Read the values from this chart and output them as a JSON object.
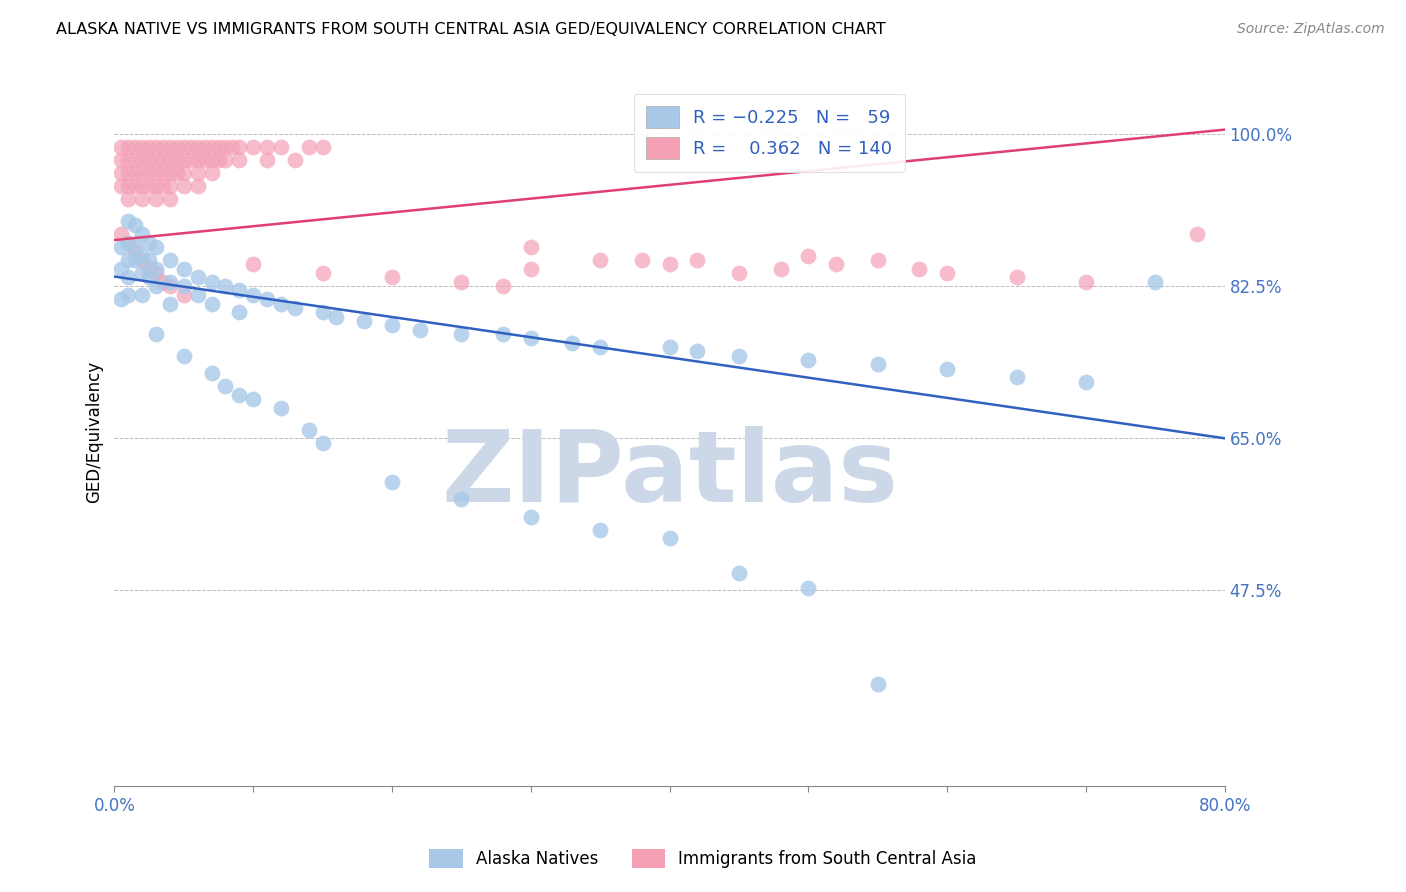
{
  "title": "ALASKA NATIVE VS IMMIGRANTS FROM SOUTH CENTRAL ASIA GED/EQUIVALENCY CORRELATION CHART",
  "source": "Source: ZipAtlas.com",
  "ylabel": "GED/Equivalency",
  "xlim": [
    0.0,
    0.8
  ],
  "ylim": [
    0.25,
    1.065
  ],
  "yticks": [
    0.475,
    0.65,
    0.825,
    1.0
  ],
  "ytick_labels": [
    "47.5%",
    "65.0%",
    "82.5%",
    "100.0%"
  ],
  "xticks": [
    0.0,
    0.1,
    0.2,
    0.3,
    0.4,
    0.5,
    0.6,
    0.7,
    0.8
  ],
  "xtick_labels": [
    "0.0%",
    "",
    "",
    "",
    "",
    "",
    "",
    "",
    "80.0%"
  ],
  "blue_color": "#a8c8e8",
  "pink_color": "#f4a0b5",
  "blue_line_color": "#3060c0",
  "pink_line_color": "#e04070",
  "blue_trend_x": [
    0.0,
    0.8
  ],
  "blue_trend_y": [
    0.836,
    0.65
  ],
  "pink_trend_x": [
    0.0,
    0.8
  ],
  "pink_trend_y": [
    0.878,
    1.005
  ],
  "watermark_text": "ZIPatlas",
  "watermark_color": "#ccd8e8",
  "title_fontsize": 11.5,
  "tick_color": "#4472c4",
  "grid_color": "#bbbbbb",
  "blue_scatter": [
    [
      0.005,
      0.87
    ],
    [
      0.005,
      0.845
    ],
    [
      0.005,
      0.81
    ],
    [
      0.01,
      0.9
    ],
    [
      0.01,
      0.875
    ],
    [
      0.01,
      0.855
    ],
    [
      0.01,
      0.835
    ],
    [
      0.01,
      0.815
    ],
    [
      0.015,
      0.895
    ],
    [
      0.015,
      0.87
    ],
    [
      0.015,
      0.855
    ],
    [
      0.02,
      0.885
    ],
    [
      0.02,
      0.86
    ],
    [
      0.02,
      0.84
    ],
    [
      0.02,
      0.815
    ],
    [
      0.025,
      0.875
    ],
    [
      0.025,
      0.855
    ],
    [
      0.025,
      0.835
    ],
    [
      0.03,
      0.87
    ],
    [
      0.03,
      0.845
    ],
    [
      0.03,
      0.825
    ],
    [
      0.04,
      0.855
    ],
    [
      0.04,
      0.83
    ],
    [
      0.04,
      0.805
    ],
    [
      0.05,
      0.845
    ],
    [
      0.05,
      0.825
    ],
    [
      0.06,
      0.835
    ],
    [
      0.06,
      0.815
    ],
    [
      0.07,
      0.83
    ],
    [
      0.07,
      0.805
    ],
    [
      0.08,
      0.825
    ],
    [
      0.09,
      0.82
    ],
    [
      0.09,
      0.795
    ],
    [
      0.1,
      0.815
    ],
    [
      0.11,
      0.81
    ],
    [
      0.12,
      0.805
    ],
    [
      0.13,
      0.8
    ],
    [
      0.15,
      0.795
    ],
    [
      0.16,
      0.79
    ],
    [
      0.18,
      0.785
    ],
    [
      0.2,
      0.78
    ],
    [
      0.22,
      0.775
    ],
    [
      0.25,
      0.77
    ],
    [
      0.28,
      0.77
    ],
    [
      0.3,
      0.765
    ],
    [
      0.33,
      0.76
    ],
    [
      0.35,
      0.755
    ],
    [
      0.4,
      0.755
    ],
    [
      0.42,
      0.75
    ],
    [
      0.45,
      0.745
    ],
    [
      0.5,
      0.74
    ],
    [
      0.55,
      0.735
    ],
    [
      0.6,
      0.73
    ],
    [
      0.65,
      0.72
    ],
    [
      0.7,
      0.715
    ],
    [
      0.75,
      0.83
    ],
    [
      0.03,
      0.77
    ],
    [
      0.05,
      0.745
    ],
    [
      0.07,
      0.725
    ],
    [
      0.08,
      0.71
    ],
    [
      0.09,
      0.7
    ],
    [
      0.1,
      0.695
    ],
    [
      0.12,
      0.685
    ],
    [
      0.14,
      0.66
    ],
    [
      0.15,
      0.645
    ],
    [
      0.2,
      0.6
    ],
    [
      0.25,
      0.58
    ],
    [
      0.3,
      0.56
    ],
    [
      0.35,
      0.545
    ],
    [
      0.4,
      0.535
    ],
    [
      0.45,
      0.495
    ],
    [
      0.5,
      0.478
    ],
    [
      0.55,
      0.368
    ]
  ],
  "pink_scatter": [
    [
      0.005,
      0.985
    ],
    [
      0.005,
      0.97
    ],
    [
      0.005,
      0.955
    ],
    [
      0.005,
      0.94
    ],
    [
      0.01,
      0.985
    ],
    [
      0.01,
      0.97
    ],
    [
      0.01,
      0.955
    ],
    [
      0.01,
      0.94
    ],
    [
      0.01,
      0.925
    ],
    [
      0.015,
      0.985
    ],
    [
      0.015,
      0.97
    ],
    [
      0.015,
      0.955
    ],
    [
      0.015,
      0.94
    ],
    [
      0.02,
      0.985
    ],
    [
      0.02,
      0.97
    ],
    [
      0.02,
      0.955
    ],
    [
      0.02,
      0.94
    ],
    [
      0.02,
      0.925
    ],
    [
      0.025,
      0.985
    ],
    [
      0.025,
      0.97
    ],
    [
      0.025,
      0.955
    ],
    [
      0.025,
      0.94
    ],
    [
      0.03,
      0.985
    ],
    [
      0.03,
      0.97
    ],
    [
      0.03,
      0.955
    ],
    [
      0.03,
      0.94
    ],
    [
      0.03,
      0.925
    ],
    [
      0.035,
      0.985
    ],
    [
      0.035,
      0.97
    ],
    [
      0.035,
      0.955
    ],
    [
      0.035,
      0.94
    ],
    [
      0.04,
      0.985
    ],
    [
      0.04,
      0.97
    ],
    [
      0.04,
      0.955
    ],
    [
      0.04,
      0.94
    ],
    [
      0.04,
      0.925
    ],
    [
      0.045,
      0.985
    ],
    [
      0.045,
      0.97
    ],
    [
      0.045,
      0.955
    ],
    [
      0.05,
      0.985
    ],
    [
      0.05,
      0.97
    ],
    [
      0.05,
      0.955
    ],
    [
      0.05,
      0.94
    ],
    [
      0.055,
      0.985
    ],
    [
      0.055,
      0.97
    ],
    [
      0.06,
      0.985
    ],
    [
      0.06,
      0.97
    ],
    [
      0.06,
      0.955
    ],
    [
      0.06,
      0.94
    ],
    [
      0.065,
      0.985
    ],
    [
      0.065,
      0.97
    ],
    [
      0.07,
      0.985
    ],
    [
      0.07,
      0.97
    ],
    [
      0.07,
      0.955
    ],
    [
      0.075,
      0.985
    ],
    [
      0.075,
      0.97
    ],
    [
      0.08,
      0.985
    ],
    [
      0.08,
      0.97
    ],
    [
      0.085,
      0.985
    ],
    [
      0.09,
      0.985
    ],
    [
      0.09,
      0.97
    ],
    [
      0.1,
      0.985
    ],
    [
      0.11,
      0.985
    ],
    [
      0.11,
      0.97
    ],
    [
      0.12,
      0.985
    ],
    [
      0.13,
      0.97
    ],
    [
      0.14,
      0.985
    ],
    [
      0.15,
      0.985
    ],
    [
      0.005,
      0.885
    ],
    [
      0.01,
      0.875
    ],
    [
      0.015,
      0.865
    ],
    [
      0.02,
      0.855
    ],
    [
      0.025,
      0.845
    ],
    [
      0.03,
      0.84
    ],
    [
      0.035,
      0.83
    ],
    [
      0.04,
      0.825
    ],
    [
      0.05,
      0.815
    ],
    [
      0.1,
      0.85
    ],
    [
      0.15,
      0.84
    ],
    [
      0.2,
      0.835
    ],
    [
      0.25,
      0.83
    ],
    [
      0.28,
      0.825
    ],
    [
      0.3,
      0.87
    ],
    [
      0.3,
      0.845
    ],
    [
      0.35,
      0.855
    ],
    [
      0.38,
      0.855
    ],
    [
      0.4,
      0.85
    ],
    [
      0.42,
      0.855
    ],
    [
      0.45,
      0.84
    ],
    [
      0.48,
      0.845
    ],
    [
      0.5,
      0.86
    ],
    [
      0.52,
      0.85
    ],
    [
      0.55,
      0.855
    ],
    [
      0.58,
      0.845
    ],
    [
      0.6,
      0.84
    ],
    [
      0.65,
      0.835
    ],
    [
      0.7,
      0.83
    ],
    [
      0.78,
      0.885
    ]
  ]
}
